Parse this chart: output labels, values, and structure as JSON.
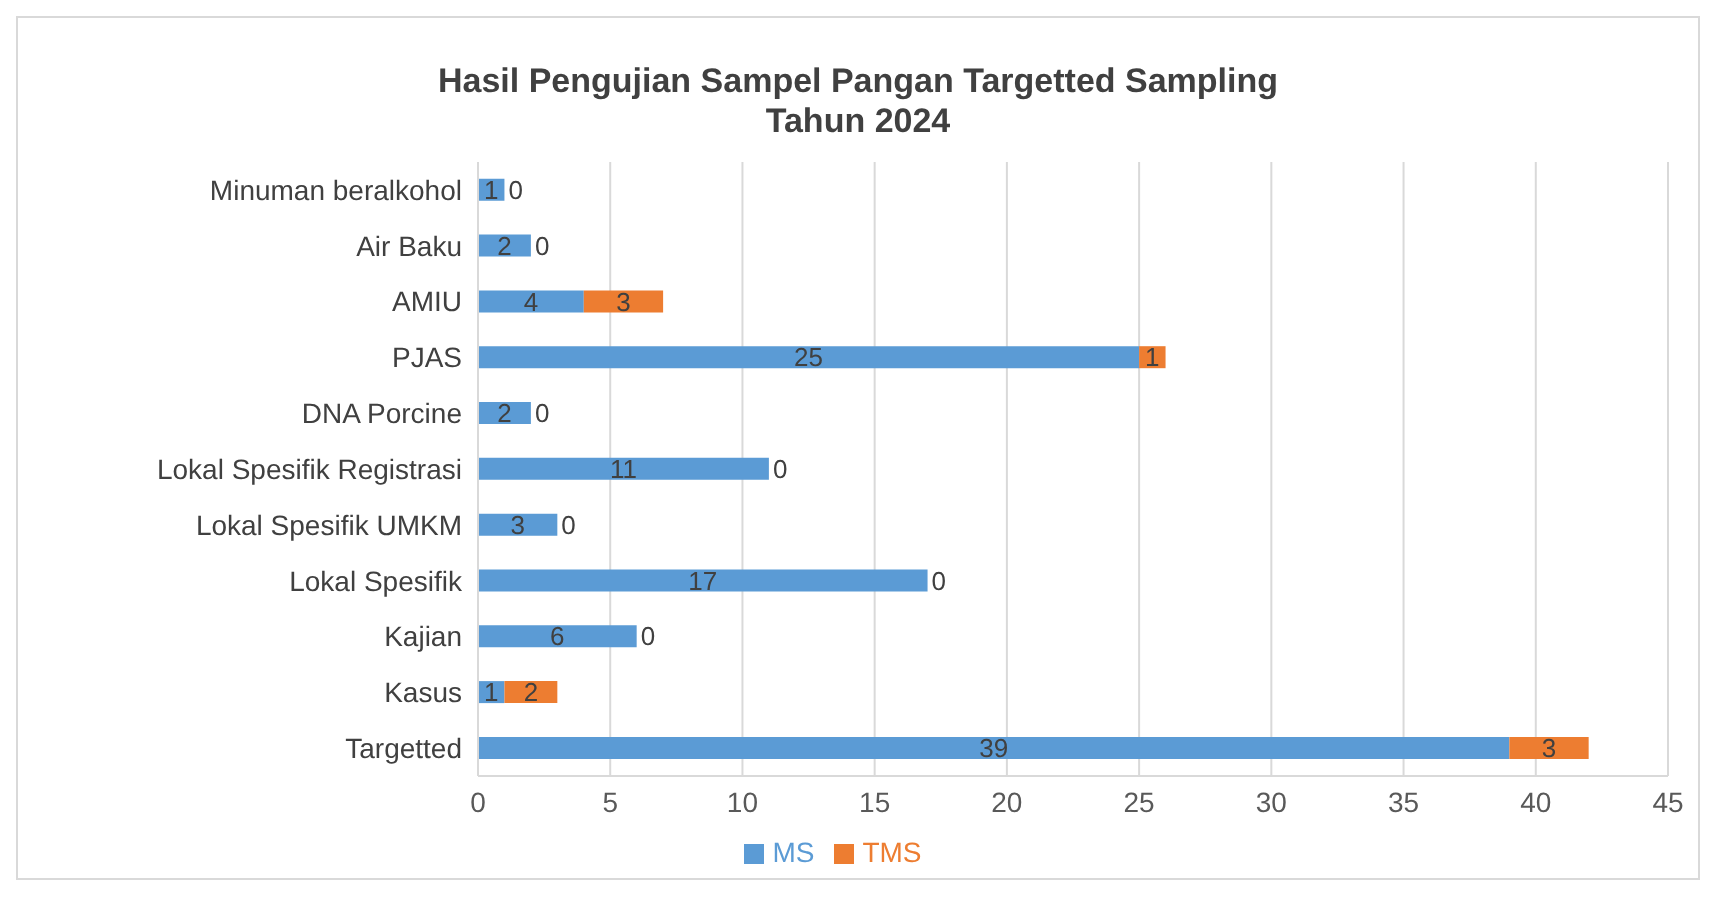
{
  "chart_data": {
    "type": "bar",
    "orientation": "horizontal",
    "stacked": true,
    "title": "Hasil Pengujian Sampel Pangan Targetted Sampling",
    "subtitle": "Tahun 2024",
    "categories": [
      "Minuman beralkohol",
      "Air Baku",
      "AMIU",
      "PJAS",
      "DNA Porcine",
      "Lokal Spesifik Registrasi",
      "Lokal Spesifik UMKM",
      "Lokal Spesifik",
      "Kajian",
      "Kasus",
      "Targetted"
    ],
    "series": [
      {
        "name": "MS",
        "color": "#5b9bd5",
        "values": [
          1,
          2,
          4,
          25,
          2,
          11,
          3,
          17,
          6,
          1,
          39
        ]
      },
      {
        "name": "TMS",
        "color": "#ed7d31",
        "values": [
          0,
          0,
          3,
          1,
          0,
          0,
          0,
          0,
          0,
          2,
          3
        ]
      }
    ],
    "xlim": [
      0,
      45
    ],
    "xticks": [
      0,
      5,
      10,
      15,
      20,
      25,
      30,
      35,
      40,
      45
    ],
    "grid": "x",
    "legend": "bottom",
    "data_labels": true
  }
}
